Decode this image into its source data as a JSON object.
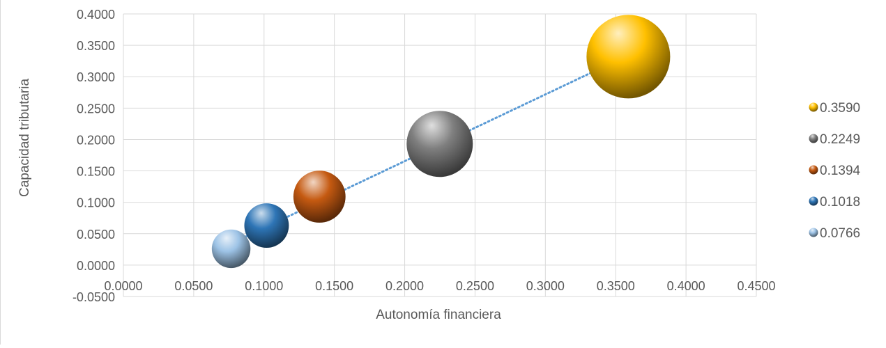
{
  "chart_data": {
    "type": "scatter",
    "subtype": "bubble",
    "title": "",
    "xlabel": "Autonomía financiera",
    "ylabel": "Capacidad tributaria",
    "xlim": [
      0,
      0.45
    ],
    "ylim": [
      -0.05,
      0.4
    ],
    "x_ticks": [
      "0.0000",
      "0.0500",
      "0.1000",
      "0.1500",
      "0.2000",
      "0.2500",
      "0.3000",
      "0.3500",
      "0.4000",
      "0.4500"
    ],
    "y_ticks": [
      "-0.0500",
      "0.0000",
      "0.0500",
      "0.1000",
      "0.1500",
      "0.2000",
      "0.2500",
      "0.3000",
      "0.3500",
      "0.4000"
    ],
    "grid": true,
    "legend_position": "right",
    "trendline": {
      "style": "dotted",
      "color": "#5B9BD5",
      "x_range": [
        0.0766,
        0.359
      ]
    },
    "series": [
      {
        "name": "0.3590",
        "x": 0.359,
        "y": 0.332,
        "size": 0.359,
        "color": "#FFC000"
      },
      {
        "name": "0.2249",
        "x": 0.2249,
        "y": 0.193,
        "size": 0.2249,
        "color": "#7F7F7F"
      },
      {
        "name": "0.1394",
        "x": 0.1394,
        "y": 0.109,
        "size": 0.1394,
        "color": "#C55A11"
      },
      {
        "name": "0.1018",
        "x": 0.1018,
        "y": 0.063,
        "size": 0.1018,
        "color": "#2E75B6"
      },
      {
        "name": "0.0766",
        "x": 0.0766,
        "y": 0.026,
        "size": 0.0766,
        "color": "#9DC3E6"
      }
    ]
  }
}
